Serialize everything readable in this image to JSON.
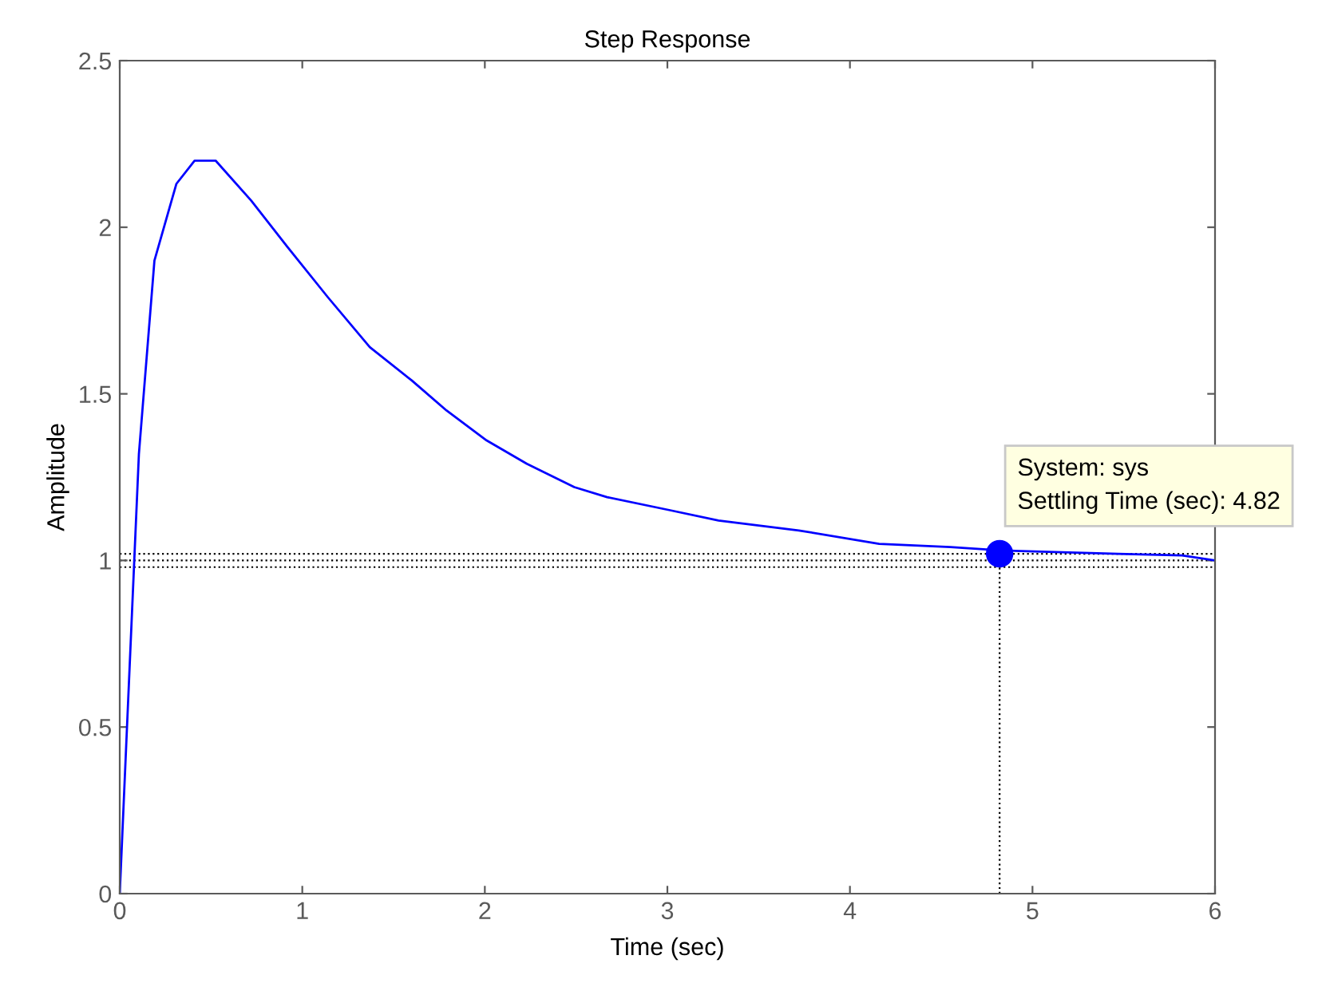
{
  "chart_data": {
    "type": "line",
    "title": "Step Response",
    "xlabel": "Time (sec)",
    "ylabel": "Amplitude",
    "xlim": [
      0,
      6
    ],
    "ylim": [
      0,
      2.5
    ],
    "xticks": [
      0,
      1,
      2,
      3,
      4,
      5,
      6
    ],
    "yticks": [
      0,
      0.5,
      1,
      1.5,
      2,
      2.5
    ],
    "grid": false,
    "legend": false,
    "series": [
      {
        "color": "#0000ff",
        "marker": "none",
        "line_style": "solid",
        "x": [
          0,
          0.105,
          0.19,
          0.31,
          0.41,
          0.525,
          0.72,
          0.92,
          1.14,
          1.37,
          1.6,
          1.79,
          2.01,
          2.23,
          2.49,
          2.67,
          3.02,
          3.28,
          3.72,
          4.16,
          4.55,
          4.83,
          5.47,
          5.82,
          6
        ],
        "values": [
          0,
          1.32,
          1.9,
          2.13,
          2.2,
          2.2,
          2.08,
          1.94,
          1.79,
          1.64,
          1.54,
          1.45,
          1.36,
          1.29,
          1.22,
          1.19,
          1.15,
          1.12,
          1.09,
          1.05,
          1.04,
          1.03,
          1.02,
          1.015,
          1.0
        ]
      },
      {
        "type": "scatter",
        "color": "#0000ff",
        "marker": "circle",
        "x": [
          4.82
        ],
        "values": [
          1.02
        ]
      }
    ],
    "ref_lines": [
      {
        "axis": "y",
        "value": 1.02,
        "color": "#000000",
        "line_style": "dotted"
      },
      {
        "axis": "y",
        "value": 1.0,
        "color": "#000000",
        "line_style": "dotted"
      },
      {
        "axis": "y",
        "value": 0.98,
        "color": "#000000",
        "line_style": "dotted"
      },
      {
        "axis": "x",
        "value": 4.82,
        "color": "#000000",
        "line_style": "dotted"
      }
    ],
    "annotations": [
      {
        "text": "System: sys\nSettling Time (sec): 4.82",
        "x": 4.82,
        "y": 1.02
      }
    ]
  }
}
